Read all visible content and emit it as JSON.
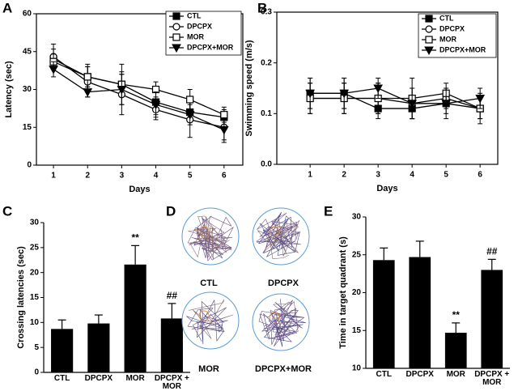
{
  "chart_data": [
    {
      "type": "line",
      "panel": "A",
      "xlabel": "Days",
      "ylabel": "Latency (sec)",
      "x": [
        1,
        2,
        3,
        4,
        5,
        6
      ],
      "xlim": [
        0.5,
        6.55
      ],
      "xticks": [
        1,
        2,
        3,
        4,
        5,
        6
      ],
      "ylim": [
        0,
        60
      ],
      "yticks": [
        0,
        15,
        30,
        45,
        60
      ],
      "series": [
        {
          "name": "CTL",
          "color": "#000000",
          "marker": "square-filled",
          "values": [
            42,
            35,
            32,
            25,
            21,
            19
          ],
          "errors": [
            4,
            4,
            5,
            5,
            4,
            3
          ]
        },
        {
          "name": "DPCPX",
          "color": "#000000",
          "marker": "circle-open",
          "values": [
            43,
            33,
            28,
            22,
            18,
            15
          ],
          "errors": [
            5,
            6,
            8,
            4,
            7,
            6
          ]
        },
        {
          "name": "MOR",
          "color": "#000000",
          "marker": "square-open",
          "values": [
            41,
            35,
            32,
            30,
            26,
            20
          ],
          "errors": [
            3,
            5,
            8,
            3,
            4,
            3
          ]
        },
        {
          "name": "DPCPX+MOR",
          "color": "#000000",
          "marker": "triangle-down-filled",
          "values": [
            38,
            29,
            30,
            24,
            20,
            14
          ],
          "errors": [
            3,
            2,
            6,
            5,
            4,
            4
          ]
        }
      ]
    },
    {
      "type": "line",
      "panel": "B",
      "xlabel": "Days",
      "ylabel": "Swimming speed (m/s)",
      "x": [
        1,
        2,
        3,
        4,
        5,
        6
      ],
      "xlim": [
        0.02,
        6.52
      ],
      "xticks": [
        1,
        2,
        3,
        4,
        5,
        6
      ],
      "ylim": [
        0,
        0.3
      ],
      "yticks": [
        {
          "value": 0,
          "label": "0.0"
        },
        0.1,
        0.2,
        0.3
      ],
      "series": [
        {
          "name": "CTL",
          "color": "#000000",
          "marker": "square-filled",
          "values": [
            0.14,
            0.14,
            0.11,
            0.11,
            0.12,
            0.11
          ],
          "errors": [
            0.03,
            0.03,
            0.02,
            0.02,
            0.02,
            0.03
          ]
        },
        {
          "name": "DPCPX",
          "color": "#000000",
          "marker": "circle-open",
          "values": [
            0.13,
            0.13,
            0.13,
            0.12,
            0.13,
            0.11
          ],
          "errors": [
            0.03,
            0.03,
            0.03,
            0.03,
            0.02,
            0.02
          ]
        },
        {
          "name": "MOR",
          "color": "#000000",
          "marker": "square-open",
          "values": [
            0.13,
            0.13,
            0.13,
            0.13,
            0.14,
            0.11
          ],
          "errors": [
            0.03,
            0.03,
            0.03,
            0.04,
            0.02,
            0.02
          ]
        },
        {
          "name": "DPCPX+MOR",
          "color": "#000000",
          "marker": "triangle-down-filled",
          "values": [
            0.14,
            0.14,
            0.15,
            0.12,
            0.12,
            0.13
          ],
          "errors": [
            0.03,
            0.03,
            0.02,
            0.03,
            0.03,
            0.02
          ]
        }
      ]
    },
    {
      "type": "bar",
      "panel": "C",
      "ylabel": "Crossing latencies (sec)",
      "categories": [
        "CTL",
        "DPCPX",
        "MOR",
        "DPCPX + MOR"
      ],
      "color": "#000000",
      "values": [
        8.7,
        9.8,
        21.6,
        10.8
      ],
      "errors": [
        1.8,
        1.7,
        3.8,
        3.0
      ],
      "annotations": [
        null,
        null,
        "**",
        "##"
      ],
      "ylim": [
        0,
        30
      ],
      "yticks": [
        0,
        5,
        10,
        15,
        20,
        25,
        30
      ]
    },
    {
      "type": "bar",
      "panel": "E",
      "ylabel": "Time in target quadrant (s)",
      "categories": [
        "CTL",
        "DPCPX",
        "MOR",
        "DPCPX + MOR"
      ],
      "color": "#000000",
      "values": [
        24.3,
        24.7,
        14.7,
        23.0
      ],
      "errors": [
        1.6,
        2.1,
        1.3,
        1.4
      ],
      "annotations": [
        null,
        null,
        "**",
        "##"
      ],
      "ylim": [
        10,
        30
      ],
      "yticks": [
        10,
        15,
        20,
        25,
        30
      ]
    }
  ],
  "track_plots": {
    "panel": "D",
    "labels": [
      "CTL",
      "DPCPX",
      "MOR",
      "DPCPX+MOR"
    ]
  }
}
